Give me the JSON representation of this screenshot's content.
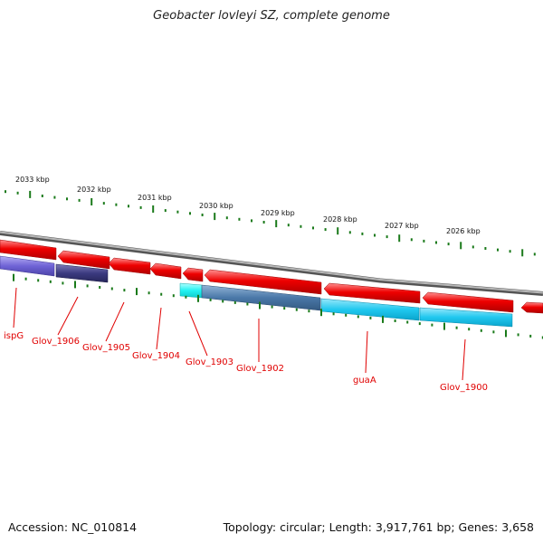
{
  "title": "Geobacter lovleyi SZ, complete genome",
  "footer": {
    "accession": "Accession: NC_010814",
    "summary": "Topology: circular; Length: 3,917,761 bp; Genes: 3,658"
  },
  "scale_labels": [
    "2033 kbp",
    "2032 kbp",
    "2031 kbp",
    "2030 kbp",
    "2029 kbp",
    "2028 kbp",
    "2027 kbp",
    "2026 kbp"
  ],
  "gene_labels": [
    "ispG",
    "Glov_1906",
    "Glov_1905",
    "Glov_1904",
    "Glov_1903",
    "Glov_1902",
    "guaA",
    "Glov_1900"
  ],
  "colors": {
    "backbone": "#8a8a8a",
    "gene_red": "#ee0000",
    "label_red": "#e00000",
    "tick_green": "#1a7a1a",
    "purple": "#6f63d6",
    "navy": "#3b3a80",
    "steel": "#4a78a8",
    "cyan": "#20c8ef",
    "cyan_light": "#22f2f2"
  }
}
